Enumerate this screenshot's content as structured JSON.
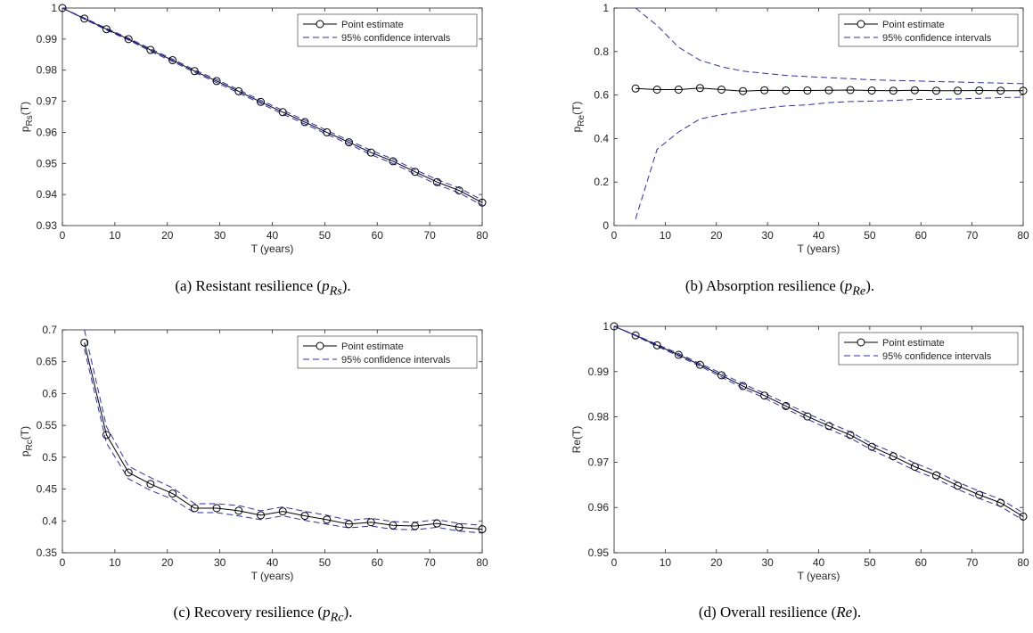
{
  "colors": {
    "point": "#000000",
    "ci": "#2b2bd0",
    "axis": "#262626"
  },
  "chart_data": [
    {
      "type": "line",
      "caption": {
        "text": "(a) Resistant resilience (",
        "math_base": "p",
        "math_sub": "Rs",
        "close": ")."
      },
      "ylabel": {
        "base": "p",
        "sub": "Rs",
        "tail": "(T)"
      },
      "xlabel": "T (years)",
      "xlim": [
        0,
        80
      ],
      "ylim": [
        0.93,
        1
      ],
      "xticks": [
        0,
        10,
        20,
        30,
        40,
        50,
        60,
        70,
        80
      ],
      "yticks": [
        0.93,
        0.94,
        0.95,
        0.96,
        0.97,
        0.98,
        0.99,
        1
      ],
      "ytick_labels": [
        "0.93",
        "0.94",
        "0.95",
        "0.96",
        "0.97",
        "0.98",
        "0.99",
        "1"
      ],
      "legend": {
        "position": "top-right",
        "entries": [
          "Point estimate",
          "95% confidence intervals"
        ]
      },
      "grid": false,
      "x": [
        0,
        4.2,
        8.4,
        12.6,
        16.8,
        21,
        25.2,
        29.4,
        33.6,
        37.8,
        42,
        46.2,
        50.4,
        54.6,
        58.8,
        63,
        67.2,
        71.4,
        75.6,
        80
      ],
      "series": [
        {
          "name": "Point estimate",
          "style": "solid-circle",
          "values": [
            1,
            0.9966,
            0.9932,
            0.99,
            0.9865,
            0.9832,
            0.9797,
            0.9765,
            0.9732,
            0.9698,
            0.9665,
            0.9633,
            0.96,
            0.9568,
            0.9535,
            0.9507,
            0.9473,
            0.944,
            0.9413,
            0.9374
          ]
        },
        {
          "name": "95% confidence intervals",
          "style": "dashed",
          "values": [
            1,
            0.9968,
            0.9935,
            0.9903,
            0.9869,
            0.9836,
            0.9801,
            0.977,
            0.9737,
            0.9703,
            0.9671,
            0.9639,
            0.9606,
            0.9574,
            0.9542,
            0.9514,
            0.948,
            0.9448,
            0.9421,
            0.9382
          ]
        },
        {
          "name": "",
          "style": "dashed",
          "values": [
            1,
            0.9964,
            0.9929,
            0.9897,
            0.9861,
            0.9828,
            0.9793,
            0.976,
            0.9727,
            0.9693,
            0.9659,
            0.9627,
            0.9594,
            0.9562,
            0.9528,
            0.95,
            0.9466,
            0.9432,
            0.9405,
            0.9366
          ]
        }
      ]
    },
    {
      "type": "line",
      "caption": {
        "text": "(b) Absorption resilience (",
        "math_base": "p",
        "math_sub": "Re",
        "close": ")."
      },
      "ylabel": {
        "base": "p",
        "sub": "Re",
        "tail": "(T)"
      },
      "xlabel": "T (years)",
      "xlim": [
        0,
        80
      ],
      "ylim": [
        0,
        1
      ],
      "xticks": [
        0,
        10,
        20,
        30,
        40,
        50,
        60,
        70,
        80
      ],
      "yticks": [
        0,
        0.2,
        0.4,
        0.6,
        0.8,
        1
      ],
      "ytick_labels": [
        "0",
        "0.2",
        "0.4",
        "0.6",
        "0.8",
        "1"
      ],
      "legend": {
        "position": "top-right",
        "entries": [
          "Point estimate",
          "95% confidence intervals"
        ]
      },
      "grid": false,
      "x": [
        4.2,
        8.4,
        12.6,
        16.8,
        21,
        25.2,
        29.4,
        33.6,
        37.8,
        42,
        46.2,
        50.4,
        54.6,
        58.8,
        63,
        67.2,
        71.4,
        75.6,
        80
      ],
      "series": [
        {
          "name": "Point estimate",
          "style": "solid-circle",
          "values": [
            0.63,
            0.625,
            0.625,
            0.632,
            0.625,
            0.618,
            0.622,
            0.621,
            0.621,
            0.622,
            0.623,
            0.621,
            0.62,
            0.622,
            0.62,
            0.62,
            0.621,
            0.62,
            0.62
          ]
        },
        {
          "name": "95% confidence intervals",
          "style": "dashed",
          "values": [
            1.0,
            0.92,
            0.82,
            0.76,
            0.73,
            0.71,
            0.7,
            0.69,
            0.685,
            0.68,
            0.675,
            0.67,
            0.667,
            0.665,
            0.662,
            0.66,
            0.657,
            0.655,
            0.652
          ]
        },
        {
          "name": "",
          "style": "dashed",
          "values": [
            0.03,
            0.35,
            0.43,
            0.49,
            0.51,
            0.525,
            0.54,
            0.55,
            0.555,
            0.565,
            0.57,
            0.572,
            0.575,
            0.58,
            0.58,
            0.582,
            0.585,
            0.588,
            0.59
          ]
        }
      ]
    },
    {
      "type": "line",
      "caption": {
        "text": "(c) Recovery resilience (",
        "math_base": "p",
        "math_sub": "Rc",
        "close": ")."
      },
      "ylabel": {
        "base": "p",
        "sub": "Rc",
        "tail": "(T)"
      },
      "xlabel": "T (years)",
      "xlim": [
        0,
        80
      ],
      "ylim": [
        0.35,
        0.7
      ],
      "xticks": [
        0,
        10,
        20,
        30,
        40,
        50,
        60,
        70,
        80
      ],
      "yticks": [
        0.35,
        0.4,
        0.45,
        0.5,
        0.55,
        0.6,
        0.65,
        0.7
      ],
      "ytick_labels": [
        "0.35",
        "0.4",
        "0.45",
        "0.5",
        "0.55",
        "0.6",
        "0.65",
        "0.7"
      ],
      "legend": {
        "position": "top-right",
        "entries": [
          "Point estimate",
          "95% confidence intervals"
        ]
      },
      "grid": false,
      "x": [
        4.2,
        8.4,
        12.6,
        16.8,
        21,
        25.2,
        29.4,
        33.6,
        37.8,
        42,
        46.2,
        50.4,
        54.6,
        58.8,
        63,
        67.2,
        71.4,
        75.6,
        80
      ],
      "series": [
        {
          "name": "Point estimate",
          "style": "solid-circle",
          "values": [
            0.68,
            0.535,
            0.476,
            0.458,
            0.443,
            0.42,
            0.42,
            0.416,
            0.409,
            0.415,
            0.408,
            0.402,
            0.395,
            0.398,
            0.393,
            0.392,
            0.396,
            0.39,
            0.387
          ]
        },
        {
          "name": "95% confidence intervals",
          "style": "dashed",
          "values": [
            0.7,
            0.548,
            0.486,
            0.468,
            0.452,
            0.427,
            0.427,
            0.424,
            0.416,
            0.422,
            0.415,
            0.409,
            0.401,
            0.404,
            0.399,
            0.398,
            0.402,
            0.396,
            0.393
          ]
        },
        {
          "name": "",
          "style": "dashed",
          "values": [
            0.67,
            0.522,
            0.466,
            0.448,
            0.434,
            0.413,
            0.413,
            0.408,
            0.402,
            0.408,
            0.401,
            0.395,
            0.389,
            0.392,
            0.387,
            0.386,
            0.39,
            0.384,
            0.381
          ]
        }
      ]
    },
    {
      "type": "line",
      "caption": {
        "text": "(d) Overall resilience (",
        "math_base": "Re",
        "math_sub": "",
        "close": ")."
      },
      "ylabel": {
        "base": "Re(T)",
        "sub": "",
        "tail": ""
      },
      "xlabel": "T (years)",
      "xlim": [
        0,
        80
      ],
      "ylim": [
        0.95,
        1
      ],
      "xticks": [
        0,
        10,
        20,
        30,
        40,
        50,
        60,
        70,
        80
      ],
      "yticks": [
        0.95,
        0.96,
        0.97,
        0.98,
        0.99,
        1
      ],
      "ytick_labels": [
        "0.95",
        "0.96",
        "0.97",
        "0.98",
        "0.99",
        "1"
      ],
      "legend": {
        "position": "top-right",
        "entries": [
          "Point estimate",
          "95% confidence intervals"
        ]
      },
      "grid": false,
      "x": [
        0,
        4.2,
        8.4,
        12.6,
        16.8,
        21,
        25.2,
        29.4,
        33.6,
        37.8,
        42,
        46.2,
        50.4,
        54.6,
        58.8,
        63,
        67.2,
        71.4,
        75.6,
        80
      ],
      "series": [
        {
          "name": "Point estimate",
          "style": "solid-circle",
          "values": [
            1,
            0.998,
            0.9958,
            0.9937,
            0.9915,
            0.9892,
            0.9868,
            0.9847,
            0.9824,
            0.9801,
            0.978,
            0.976,
            0.9734,
            0.9713,
            0.969,
            0.9671,
            0.9648,
            0.9628,
            0.961,
            0.958
          ]
        },
        {
          "name": "95% confidence intervals",
          "style": "dashed",
          "values": [
            1,
            0.9981,
            0.996,
            0.994,
            0.9918,
            0.9896,
            0.9873,
            0.9852,
            0.983,
            0.9807,
            0.9787,
            0.9767,
            0.9741,
            0.9721,
            0.9698,
            0.9679,
            0.9656,
            0.9636,
            0.9618,
            0.9588
          ]
        },
        {
          "name": "",
          "style": "dashed",
          "values": [
            1,
            0.9979,
            0.9956,
            0.9934,
            0.9912,
            0.9888,
            0.9863,
            0.9842,
            0.9818,
            0.9795,
            0.9773,
            0.9753,
            0.9727,
            0.9705,
            0.9682,
            0.9663,
            0.964,
            0.962,
            0.9602,
            0.9572
          ]
        }
      ]
    }
  ]
}
